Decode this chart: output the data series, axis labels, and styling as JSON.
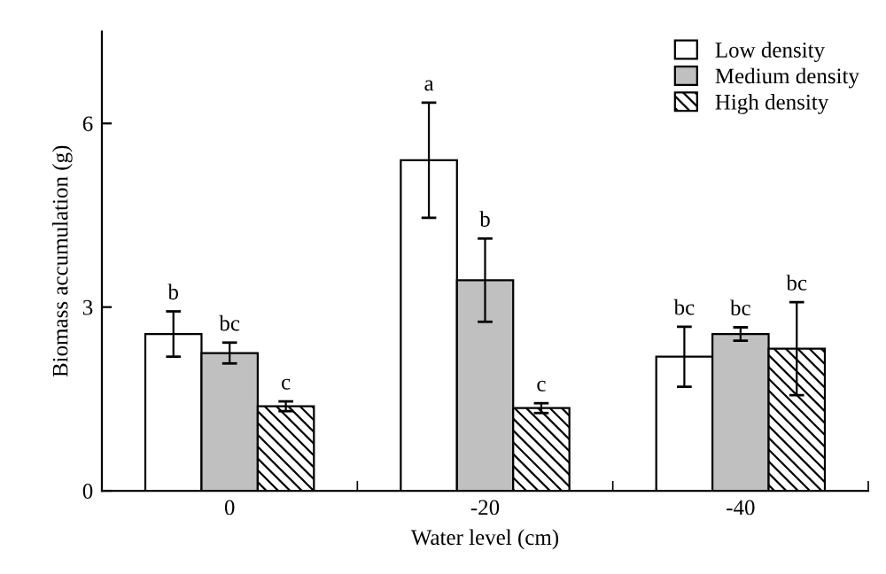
{
  "chart_data": {
    "type": "bar",
    "xlabel": "Water level (cm)",
    "ylabel": "Biomass accumulation (g)",
    "categories": [
      "0",
      "-20",
      "-40"
    ],
    "series": [
      {
        "name": "Low density",
        "color": "#ffffff",
        "values": [
          2.56,
          5.4,
          2.19
        ],
        "errors": [
          0.37,
          0.94,
          0.49
        ],
        "value_labels": [
          "b",
          "a",
          "bc"
        ]
      },
      {
        "name": "Medium density",
        "color": "#c0c0c0",
        "values": [
          2.25,
          3.44,
          2.56
        ],
        "errors": [
          0.17,
          0.68,
          0.11
        ],
        "value_labels": [
          "bc",
          "b",
          "bc"
        ]
      },
      {
        "name": "High density",
        "color": "#000000",
        "values": [
          1.38,
          1.35,
          2.32
        ],
        "errors": [
          0.08,
          0.08,
          0.76
        ],
        "value_labels": [
          "c",
          "c",
          "bc"
        ]
      }
    ],
    "ylim": [
      0,
      7.5
    ],
    "yticks": [
      0,
      3,
      6
    ],
    "grid": false,
    "legend": "top right"
  }
}
